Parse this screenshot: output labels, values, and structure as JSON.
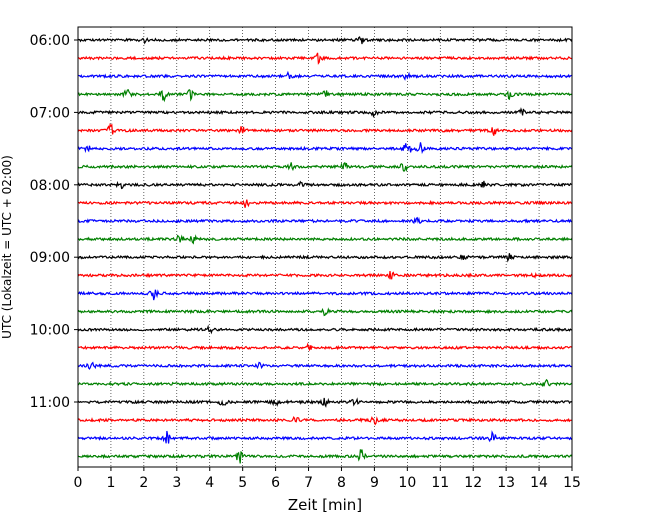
{
  "chart_data": {
    "type": "line",
    "title": "",
    "xlabel": "Zeit  [min]",
    "ylabel": "UTC (Lokalzeit = UTC + 02:00)",
    "xlim": [
      0,
      15
    ],
    "x_ticks": [
      0,
      1,
      2,
      3,
      4,
      5,
      6,
      7,
      8,
      9,
      10,
      11,
      12,
      13,
      14,
      15
    ],
    "y_tick_labels": [
      "06:00",
      "07:00",
      "08:00",
      "09:00",
      "10:00",
      "11:00"
    ],
    "grid": "vertical dotted",
    "trace_colors": [
      "#000000",
      "#ff0000",
      "#0000ff",
      "#008000"
    ],
    "trace_interval_minutes": 15,
    "traces": [
      {
        "start": "06:00",
        "color": "#000000",
        "events": [
          [
            2.0,
            0.25
          ],
          [
            8.6,
            0.35
          ]
        ]
      },
      {
        "start": "06:15",
        "color": "#ff0000",
        "events": [
          [
            7.3,
            0.5
          ]
        ]
      },
      {
        "start": "06:30",
        "color": "#0000ff",
        "events": [
          [
            6.4,
            0.8
          ],
          [
            10.0,
            0.4
          ]
        ]
      },
      {
        "start": "06:45",
        "color": "#008000",
        "events": [
          [
            1.5,
            0.5
          ],
          [
            2.6,
            0.6
          ],
          [
            3.4,
            0.5
          ],
          [
            7.5,
            0.4
          ],
          [
            13.1,
            0.4
          ]
        ]
      },
      {
        "start": "07:00",
        "color": "#000000",
        "events": [
          [
            9.0,
            0.35
          ],
          [
            13.5,
            0.4
          ]
        ]
      },
      {
        "start": "07:15",
        "color": "#ff0000",
        "events": [
          [
            1.0,
            0.6
          ],
          [
            5.0,
            0.5
          ],
          [
            12.6,
            0.6
          ]
        ]
      },
      {
        "start": "07:30",
        "color": "#0000ff",
        "events": [
          [
            0.3,
            0.4
          ],
          [
            10.0,
            1.0
          ],
          [
            10.4,
            0.6
          ]
        ]
      },
      {
        "start": "07:45",
        "color": "#008000",
        "events": [
          [
            6.5,
            0.5
          ],
          [
            8.1,
            0.6
          ],
          [
            9.9,
            0.6
          ]
        ]
      },
      {
        "start": "08:00",
        "color": "#000000",
        "events": [
          [
            1.3,
            0.35
          ],
          [
            6.8,
            0.35
          ],
          [
            12.3,
            0.35
          ]
        ]
      },
      {
        "start": "08:15",
        "color": "#ff0000",
        "events": [
          [
            5.1,
            0.45
          ]
        ]
      },
      {
        "start": "08:30",
        "color": "#0000ff",
        "events": [
          [
            10.3,
            0.45
          ]
        ]
      },
      {
        "start": "08:45",
        "color": "#008000",
        "events": [
          [
            3.1,
            0.5
          ],
          [
            3.5,
            0.4
          ]
        ]
      },
      {
        "start": "09:00",
        "color": "#000000",
        "events": [
          [
            11.7,
            0.4
          ],
          [
            13.1,
            0.4
          ]
        ]
      },
      {
        "start": "09:15",
        "color": "#ff0000",
        "events": [
          [
            9.5,
            0.4
          ],
          [
            13.8,
            0.35
          ]
        ]
      },
      {
        "start": "09:30",
        "color": "#0000ff",
        "events": [
          [
            2.3,
            0.65
          ]
        ]
      },
      {
        "start": "09:45",
        "color": "#008000",
        "events": [
          [
            7.5,
            0.4
          ]
        ]
      },
      {
        "start": "10:00",
        "color": "#000000",
        "events": [
          [
            4.0,
            0.3
          ]
        ]
      },
      {
        "start": "10:15",
        "color": "#ff0000",
        "events": [
          [
            7.0,
            0.3
          ]
        ]
      },
      {
        "start": "10:30",
        "color": "#0000ff",
        "events": [
          [
            0.4,
            0.5
          ],
          [
            5.5,
            0.35
          ]
        ]
      },
      {
        "start": "10:45",
        "color": "#008000",
        "events": [
          [
            14.2,
            0.6
          ]
        ]
      },
      {
        "start": "11:00",
        "color": "#000000",
        "events": [
          [
            4.4,
            0.4
          ],
          [
            6.0,
            0.35
          ],
          [
            7.5,
            0.4
          ],
          [
            8.4,
            0.4
          ]
        ]
      },
      {
        "start": "11:15",
        "color": "#ff0000",
        "events": [
          [
            6.6,
            0.35
          ],
          [
            9.0,
            0.45
          ]
        ]
      },
      {
        "start": "11:30",
        "color": "#0000ff",
        "events": [
          [
            2.7,
            0.8
          ],
          [
            12.6,
            0.6
          ]
        ]
      },
      {
        "start": "11:45",
        "color": "#008000",
        "events": [
          [
            4.9,
            0.8
          ],
          [
            8.6,
            0.8
          ]
        ]
      }
    ]
  }
}
